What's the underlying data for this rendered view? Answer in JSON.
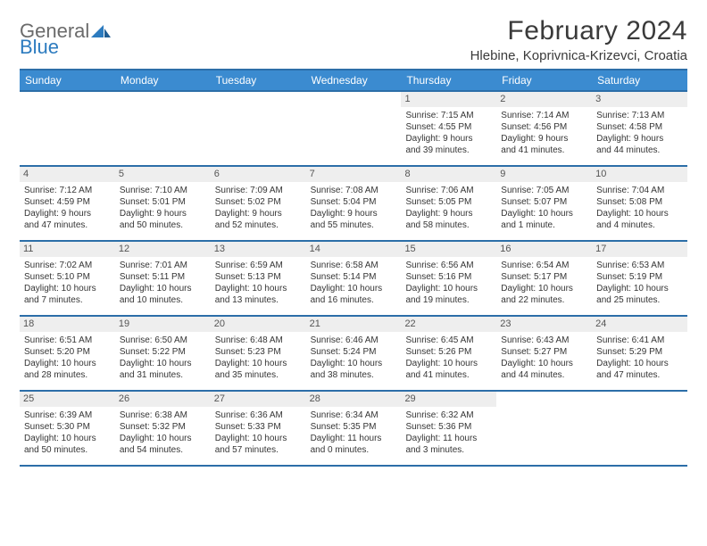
{
  "logo": {
    "line1": "General",
    "line2": "Blue"
  },
  "title": "February 2024",
  "location": "Hlebine, Koprivnica-Krizevci, Croatia",
  "colors": {
    "header_bg": "#3b8bd0",
    "border": "#2c6ea8",
    "daynum_bg": "#eeeeee",
    "text": "#353535",
    "logo_gray": "#6b6b6b",
    "logo_blue": "#2c7bbf"
  },
  "weekdays": [
    "Sunday",
    "Monday",
    "Tuesday",
    "Wednesday",
    "Thursday",
    "Friday",
    "Saturday"
  ],
  "weeks": [
    [
      {
        "n": "",
        "lines": []
      },
      {
        "n": "",
        "lines": []
      },
      {
        "n": "",
        "lines": []
      },
      {
        "n": "",
        "lines": []
      },
      {
        "n": "1",
        "lines": [
          "Sunrise: 7:15 AM",
          "Sunset: 4:55 PM",
          "Daylight: 9 hours",
          "and 39 minutes."
        ]
      },
      {
        "n": "2",
        "lines": [
          "Sunrise: 7:14 AM",
          "Sunset: 4:56 PM",
          "Daylight: 9 hours",
          "and 41 minutes."
        ]
      },
      {
        "n": "3",
        "lines": [
          "Sunrise: 7:13 AM",
          "Sunset: 4:58 PM",
          "Daylight: 9 hours",
          "and 44 minutes."
        ]
      }
    ],
    [
      {
        "n": "4",
        "lines": [
          "Sunrise: 7:12 AM",
          "Sunset: 4:59 PM",
          "Daylight: 9 hours",
          "and 47 minutes."
        ]
      },
      {
        "n": "5",
        "lines": [
          "Sunrise: 7:10 AM",
          "Sunset: 5:01 PM",
          "Daylight: 9 hours",
          "and 50 minutes."
        ]
      },
      {
        "n": "6",
        "lines": [
          "Sunrise: 7:09 AM",
          "Sunset: 5:02 PM",
          "Daylight: 9 hours",
          "and 52 minutes."
        ]
      },
      {
        "n": "7",
        "lines": [
          "Sunrise: 7:08 AM",
          "Sunset: 5:04 PM",
          "Daylight: 9 hours",
          "and 55 minutes."
        ]
      },
      {
        "n": "8",
        "lines": [
          "Sunrise: 7:06 AM",
          "Sunset: 5:05 PM",
          "Daylight: 9 hours",
          "and 58 minutes."
        ]
      },
      {
        "n": "9",
        "lines": [
          "Sunrise: 7:05 AM",
          "Sunset: 5:07 PM",
          "Daylight: 10 hours",
          "and 1 minute."
        ]
      },
      {
        "n": "10",
        "lines": [
          "Sunrise: 7:04 AM",
          "Sunset: 5:08 PM",
          "Daylight: 10 hours",
          "and 4 minutes."
        ]
      }
    ],
    [
      {
        "n": "11",
        "lines": [
          "Sunrise: 7:02 AM",
          "Sunset: 5:10 PM",
          "Daylight: 10 hours",
          "and 7 minutes."
        ]
      },
      {
        "n": "12",
        "lines": [
          "Sunrise: 7:01 AM",
          "Sunset: 5:11 PM",
          "Daylight: 10 hours",
          "and 10 minutes."
        ]
      },
      {
        "n": "13",
        "lines": [
          "Sunrise: 6:59 AM",
          "Sunset: 5:13 PM",
          "Daylight: 10 hours",
          "and 13 minutes."
        ]
      },
      {
        "n": "14",
        "lines": [
          "Sunrise: 6:58 AM",
          "Sunset: 5:14 PM",
          "Daylight: 10 hours",
          "and 16 minutes."
        ]
      },
      {
        "n": "15",
        "lines": [
          "Sunrise: 6:56 AM",
          "Sunset: 5:16 PM",
          "Daylight: 10 hours",
          "and 19 minutes."
        ]
      },
      {
        "n": "16",
        "lines": [
          "Sunrise: 6:54 AM",
          "Sunset: 5:17 PM",
          "Daylight: 10 hours",
          "and 22 minutes."
        ]
      },
      {
        "n": "17",
        "lines": [
          "Sunrise: 6:53 AM",
          "Sunset: 5:19 PM",
          "Daylight: 10 hours",
          "and 25 minutes."
        ]
      }
    ],
    [
      {
        "n": "18",
        "lines": [
          "Sunrise: 6:51 AM",
          "Sunset: 5:20 PM",
          "Daylight: 10 hours",
          "and 28 minutes."
        ]
      },
      {
        "n": "19",
        "lines": [
          "Sunrise: 6:50 AM",
          "Sunset: 5:22 PM",
          "Daylight: 10 hours",
          "and 31 minutes."
        ]
      },
      {
        "n": "20",
        "lines": [
          "Sunrise: 6:48 AM",
          "Sunset: 5:23 PM",
          "Daylight: 10 hours",
          "and 35 minutes."
        ]
      },
      {
        "n": "21",
        "lines": [
          "Sunrise: 6:46 AM",
          "Sunset: 5:24 PM",
          "Daylight: 10 hours",
          "and 38 minutes."
        ]
      },
      {
        "n": "22",
        "lines": [
          "Sunrise: 6:45 AM",
          "Sunset: 5:26 PM",
          "Daylight: 10 hours",
          "and 41 minutes."
        ]
      },
      {
        "n": "23",
        "lines": [
          "Sunrise: 6:43 AM",
          "Sunset: 5:27 PM",
          "Daylight: 10 hours",
          "and 44 minutes."
        ]
      },
      {
        "n": "24",
        "lines": [
          "Sunrise: 6:41 AM",
          "Sunset: 5:29 PM",
          "Daylight: 10 hours",
          "and 47 minutes."
        ]
      }
    ],
    [
      {
        "n": "25",
        "lines": [
          "Sunrise: 6:39 AM",
          "Sunset: 5:30 PM",
          "Daylight: 10 hours",
          "and 50 minutes."
        ]
      },
      {
        "n": "26",
        "lines": [
          "Sunrise: 6:38 AM",
          "Sunset: 5:32 PM",
          "Daylight: 10 hours",
          "and 54 minutes."
        ]
      },
      {
        "n": "27",
        "lines": [
          "Sunrise: 6:36 AM",
          "Sunset: 5:33 PM",
          "Daylight: 10 hours",
          "and 57 minutes."
        ]
      },
      {
        "n": "28",
        "lines": [
          "Sunrise: 6:34 AM",
          "Sunset: 5:35 PM",
          "Daylight: 11 hours",
          "and 0 minutes."
        ]
      },
      {
        "n": "29",
        "lines": [
          "Sunrise: 6:32 AM",
          "Sunset: 5:36 PM",
          "Daylight: 11 hours",
          "and 3 minutes."
        ]
      },
      {
        "n": "",
        "lines": []
      },
      {
        "n": "",
        "lines": []
      }
    ]
  ]
}
